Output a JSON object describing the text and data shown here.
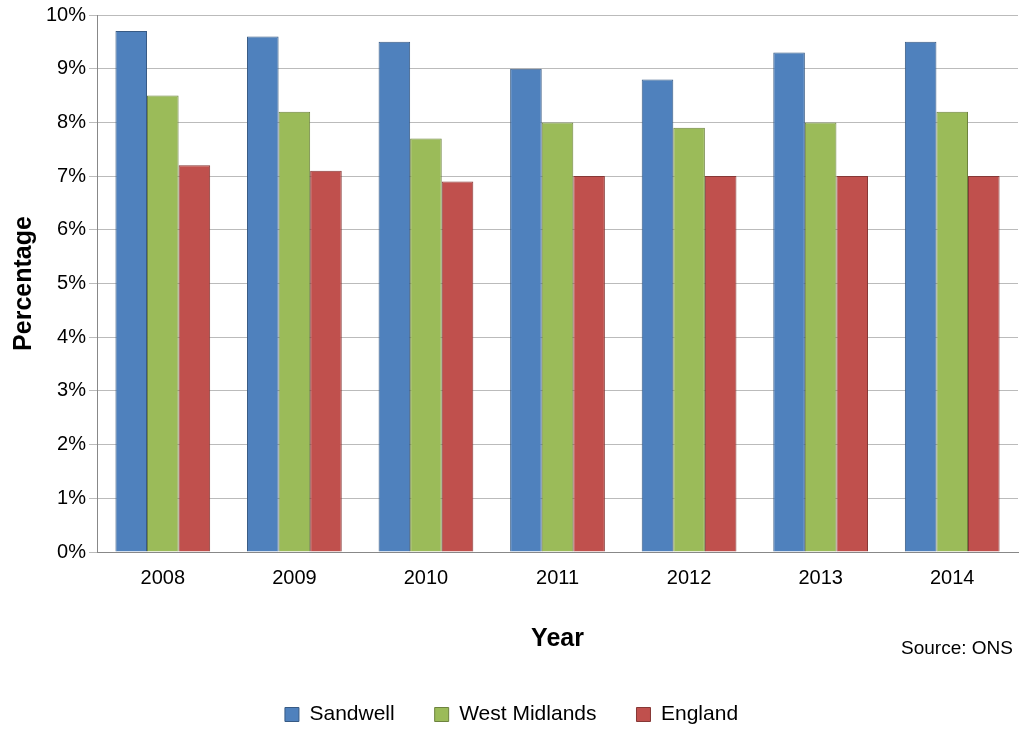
{
  "chart_data": {
    "type": "bar",
    "xlabel": "Year",
    "ylabel": "Percentage",
    "categories": [
      "2008",
      "2009",
      "2010",
      "2011",
      "2012",
      "2013",
      "2014"
    ],
    "series": [
      {
        "name": "Sandwell",
        "color": "#4f81bd",
        "values": [
          9.7,
          9.6,
          9.5,
          9.0,
          8.8,
          9.3,
          9.5
        ]
      },
      {
        "name": "West Midlands",
        "color": "#9bbb59",
        "values": [
          8.5,
          8.2,
          7.7,
          8.0,
          7.9,
          8.0,
          8.2
        ]
      },
      {
        "name": "England",
        "color": "#c0504d",
        "values": [
          7.2,
          7.1,
          6.9,
          7.0,
          7.0,
          7.0,
          7.0
        ]
      }
    ],
    "ylim": [
      0,
      10
    ],
    "yticks": [
      {
        "value": 0,
        "label": "0%"
      },
      {
        "value": 1,
        "label": "1%"
      },
      {
        "value": 2,
        "label": "2%"
      },
      {
        "value": 3,
        "label": "3%"
      },
      {
        "value": 4,
        "label": "4%"
      },
      {
        "value": 5,
        "label": "5%"
      },
      {
        "value": 6,
        "label": "6%"
      },
      {
        "value": 7,
        "label": "7%"
      },
      {
        "value": 8,
        "label": "8%"
      },
      {
        "value": 9,
        "label": "9%"
      },
      {
        "value": 10,
        "label": "10%"
      }
    ],
    "grid": "y",
    "legend": "bottom",
    "annotations": [
      "Source: ONS"
    ]
  }
}
